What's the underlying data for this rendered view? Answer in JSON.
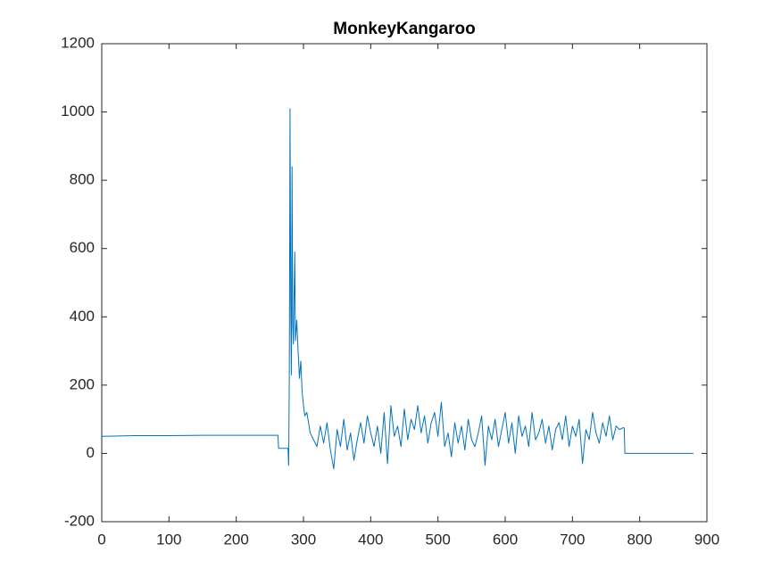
{
  "chart_data": {
    "type": "line",
    "title": "MonkeyKangaroo",
    "x": [
      0,
      50,
      100,
      150,
      200,
      262,
      263,
      277,
      278,
      279,
      280,
      281,
      282,
      283,
      284,
      285,
      287,
      288,
      290,
      292,
      294,
      296,
      298,
      300,
      302,
      305,
      310,
      315,
      320,
      325,
      330,
      335,
      340,
      345,
      350,
      355,
      360,
      365,
      370,
      375,
      380,
      385,
      390,
      395,
      400,
      405,
      410,
      415,
      420,
      425,
      430,
      435,
      440,
      445,
      450,
      455,
      460,
      465,
      470,
      475,
      480,
      485,
      490,
      495,
      500,
      505,
      510,
      515,
      520,
      525,
      530,
      535,
      540,
      545,
      550,
      555,
      560,
      565,
      570,
      575,
      580,
      585,
      590,
      595,
      600,
      605,
      610,
      615,
      620,
      625,
      630,
      635,
      640,
      645,
      650,
      655,
      660,
      665,
      670,
      675,
      680,
      685,
      690,
      695,
      700,
      705,
      710,
      715,
      720,
      725,
      730,
      735,
      740,
      745,
      750,
      755,
      760,
      765,
      770,
      775,
      777,
      778,
      880
    ],
    "series": [
      {
        "color": "#0072bd",
        "values": [
          50,
          52,
          52,
          53,
          53,
          53,
          15,
          15,
          -35,
          250,
          1010,
          450,
          230,
          840,
          380,
          320,
          590,
          330,
          390,
          300,
          220,
          270,
          180,
          140,
          110,
          120,
          60,
          40,
          20,
          80,
          30,
          90,
          10,
          -45,
          70,
          20,
          100,
          10,
          60,
          -20,
          40,
          90,
          30,
          110,
          60,
          20,
          80,
          0,
          120,
          -30,
          140,
          50,
          80,
          20,
          130,
          40,
          100,
          70,
          140,
          60,
          110,
          30,
          90,
          120,
          50,
          150,
          20,
          60,
          -10,
          90,
          30,
          80,
          10,
          100,
          40,
          20,
          60,
          110,
          -35,
          80,
          40,
          100,
          20,
          70,
          120,
          30,
          90,
          0,
          110,
          50,
          80,
          20,
          120,
          40,
          60,
          100,
          30,
          80,
          10,
          70,
          90,
          40,
          110,
          20,
          80,
          50,
          100,
          -30,
          70,
          40,
          120,
          60,
          30,
          90,
          50,
          110,
          40,
          80,
          70,
          75,
          75,
          0,
          0
        ]
      }
    ],
    "xlim": [
      0,
      900
    ],
    "xticks": [
      0,
      100,
      200,
      300,
      400,
      500,
      600,
      700,
      800,
      900
    ],
    "ylim": [
      -200,
      1200
    ],
    "yticks": [
      -200,
      0,
      200,
      400,
      600,
      800,
      1000,
      1200
    ],
    "grid": false
  }
}
